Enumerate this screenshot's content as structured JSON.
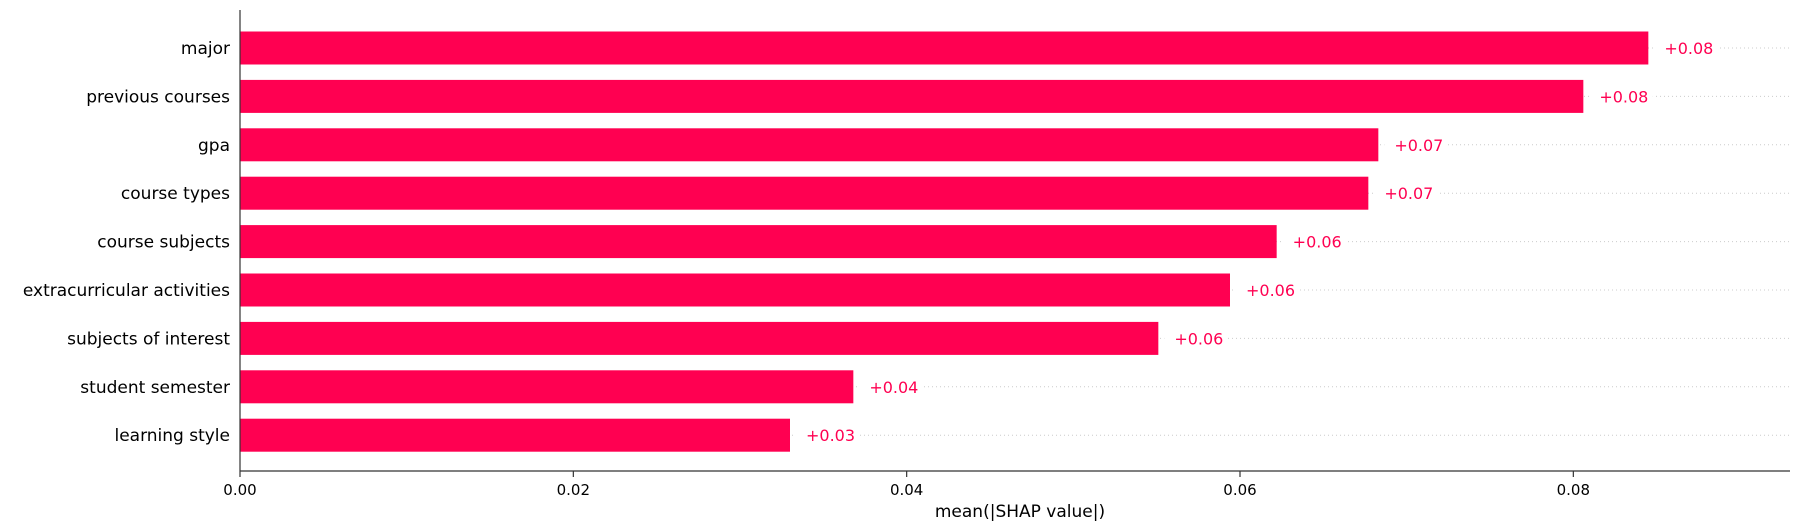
{
  "chart_data": {
    "type": "bar",
    "orientation": "horizontal",
    "title": "",
    "xlabel": "mean(|SHAP value|)",
    "ylabel": "",
    "xlim": [
      0,
      0.093
    ],
    "xticks": [
      0.0,
      0.02,
      0.04,
      0.06,
      0.08
    ],
    "xtick_labels": [
      "0.00",
      "0.02",
      "0.04",
      "0.06",
      "0.08"
    ],
    "bar_color": "#ff0051",
    "label_color": "#ff0051",
    "grid": "dotted guide lines per bar",
    "categories": [
      "major",
      "previous courses",
      "gpa",
      "course types",
      "course subjects",
      "extracurricular activities",
      "subjects of interest",
      "student semester",
      "learning style"
    ],
    "values": [
      0.0845,
      0.0806,
      0.0683,
      0.0677,
      0.0622,
      0.0594,
      0.0551,
      0.0368,
      0.033
    ],
    "value_labels": [
      "+0.08",
      "+0.08",
      "+0.07",
      "+0.07",
      "+0.06",
      "+0.06",
      "+0.06",
      "+0.04",
      "+0.03"
    ]
  }
}
